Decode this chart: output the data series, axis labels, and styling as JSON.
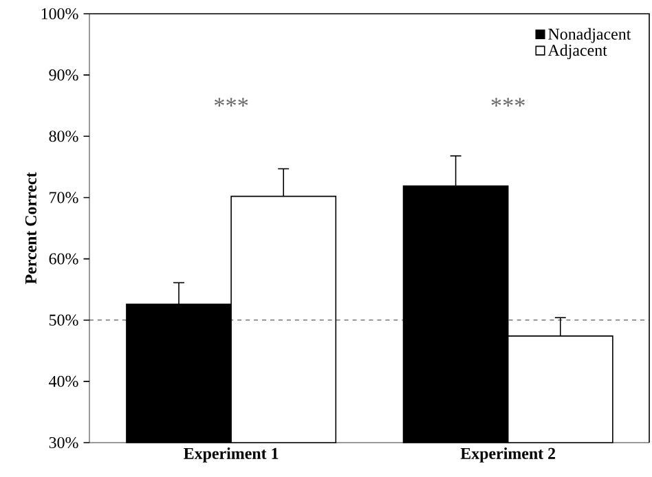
{
  "chart_data": {
    "type": "bar",
    "ylabel": "Percent Correct",
    "categories": [
      "Experiment 1",
      "Experiment 2"
    ],
    "series": [
      {
        "name": "Nonadjacent",
        "color": "#000000",
        "values": [
          52.6,
          71.9
        ],
        "errors": [
          [
            52.6,
            56.1
          ],
          [
            71.9,
            76.8
          ]
        ]
      },
      {
        "name": "Adjacent",
        "color": "#ffffff",
        "values": [
          70.2,
          47.4
        ],
        "errors": [
          [
            70.2,
            74.7
          ],
          [
            47.4,
            50.4
          ]
        ]
      }
    ],
    "ylim": [
      30,
      100
    ],
    "yticks": [
      {
        "value": 30,
        "label": "30%"
      },
      {
        "value": 40,
        "label": "40%"
      },
      {
        "value": 50,
        "label": "50%"
      },
      {
        "value": 60,
        "label": "60%"
      },
      {
        "value": 70,
        "label": "70%"
      },
      {
        "value": 80,
        "label": "80%"
      },
      {
        "value": 90,
        "label": "90%"
      },
      {
        "value": 100,
        "label": "100%"
      }
    ],
    "ref_lines": [
      {
        "axis": "y",
        "value": 50,
        "line_style": "dashed"
      }
    ],
    "annotations": [
      "***",
      "***"
    ],
    "legend": "top right",
    "grid": false
  }
}
